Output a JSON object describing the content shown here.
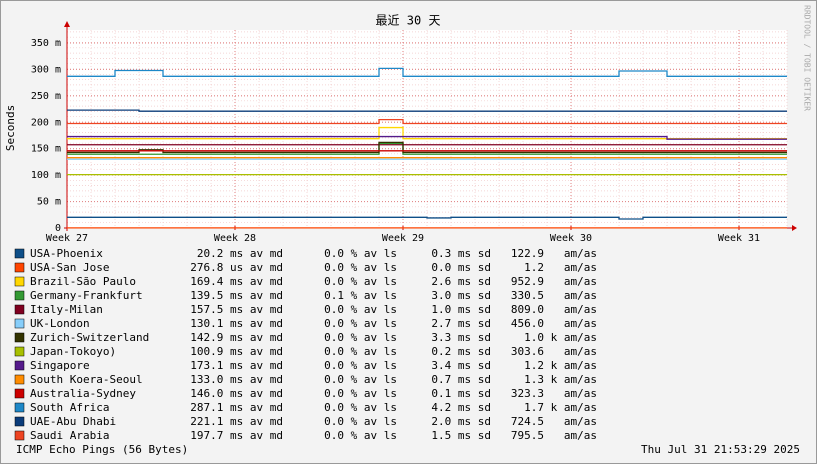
{
  "chart_data": {
    "type": "line",
    "title": "最近 30 天",
    "ylabel": "Seconds",
    "side_text": "RRDTOOL / TOBI OETIKER",
    "footer": "ICMP Echo Pings (56 Bytes)",
    "timestamp": "Thu Jul 31 21:53:29 2025",
    "categories": [
      "Week 27",
      null,
      null,
      null,
      null,
      null,
      null,
      "Week 28",
      null,
      null,
      null,
      null,
      null,
      null,
      "Week 29",
      null,
      null,
      null,
      null,
      null,
      null,
      "Week 30",
      null,
      null,
      null,
      null,
      null,
      null,
      "Week 31",
      null,
      null
    ],
    "ylim": [
      0,
      0.35
    ],
    "yticks": [
      0,
      {
        "value": 0.05,
        "label": "50 m"
      },
      {
        "value": 0.1,
        "label": "100 m"
      },
      {
        "value": 0.15,
        "label": "150 m"
      },
      {
        "value": 0.2,
        "label": "200 m"
      },
      {
        "value": 0.25,
        "label": "250 m"
      },
      {
        "value": 0.3,
        "label": "300 m"
      },
      {
        "value": 0.35,
        "label": "350 m"
      }
    ],
    "grid": true,
    "series": [
      {
        "name": "USA-Phoenix",
        "color": "#0e4f88",
        "values": [
          0.0202,
          0.0202,
          0.0202,
          0.0202,
          0.0202,
          0.0202,
          0.0202,
          0.0202,
          0.0202,
          0.0202,
          0.0202,
          0.0202,
          0.0202,
          0.0202,
          0.0202,
          0.019,
          0.0202,
          0.0202,
          0.0202,
          0.0202,
          0.0202,
          0.0202,
          0.0202,
          0.017,
          0.0202,
          0.0202,
          0.0202,
          0.0202,
          0.0202,
          0.0202,
          0.0202
        ],
        "stats": [
          "20.2 ms av md",
          "0.0 % av ls",
          "0.3 ms sd",
          "122.9   am/as"
        ]
      },
      {
        "name": "USA-San Jose",
        "color": "#ff4500",
        "values": [
          0.0003,
          0.0003,
          0.0003,
          0.0003,
          0.0003,
          0.0003,
          0.0003,
          0.0003,
          0.0003,
          0.0003,
          0.0003,
          0.0003,
          0.0003,
          0.0003,
          0.0003,
          0.0003,
          0.0003,
          0.0003,
          0.0003,
          0.0003,
          0.0003,
          0.0003,
          0.0003,
          0.0003,
          0.0003,
          0.0003,
          0.0003,
          0.0003,
          0.0003,
          0.0003,
          0.0003
        ],
        "stats": [
          "276.8 us av md",
          "0.0 % av ls",
          "0.0 ms sd",
          "1.2   am/as"
        ]
      },
      {
        "name": "Brazil-São Paulo",
        "color": "#ffd700",
        "values": [
          0.169,
          0.169,
          0.169,
          0.169,
          0.169,
          0.169,
          0.169,
          0.169,
          0.169,
          0.169,
          0.169,
          0.169,
          0.169,
          0.19,
          0.169,
          0.169,
          0.169,
          0.169,
          0.169,
          0.169,
          0.169,
          0.169,
          0.169,
          0.169,
          0.169,
          0.169,
          0.169,
          0.169,
          0.169,
          0.169,
          0.169
        ],
        "stats": [
          "169.4 ms av md",
          "0.0 % av ls",
          "2.6 ms sd",
          "952.9   am/as"
        ]
      },
      {
        "name": "Germany-Frankfurt",
        "color": "#339933",
        "values": [
          0.1395,
          0.1395,
          0.1395,
          0.1395,
          0.1395,
          0.1395,
          0.1395,
          0.1395,
          0.1395,
          0.1395,
          0.1395,
          0.1395,
          0.1395,
          0.16,
          0.1395,
          0.1395,
          0.1395,
          0.1395,
          0.1395,
          0.1395,
          0.1395,
          0.1395,
          0.1395,
          0.1395,
          0.1395,
          0.1395,
          0.1395,
          0.1395,
          0.1395,
          0.1395,
          0.1395
        ],
        "stats": [
          "139.5 ms av md",
          "0.1 % av ls",
          "3.0 ms sd",
          "330.5   am/as"
        ]
      },
      {
        "name": "Italy-Milan",
        "color": "#800020",
        "values": [
          0.1575,
          0.1575,
          0.1575,
          0.1575,
          0.1575,
          0.1575,
          0.1575,
          0.1575,
          0.1575,
          0.1575,
          0.1575,
          0.1575,
          0.1575,
          0.1575,
          0.1575,
          0.1575,
          0.1575,
          0.1575,
          0.1575,
          0.1575,
          0.1575,
          0.1575,
          0.1575,
          0.1575,
          0.1575,
          0.1575,
          0.1575,
          0.1575,
          0.1575,
          0.1575,
          0.1575
        ],
        "stats": [
          "157.5 ms av md",
          "0.0 % av ls",
          "1.0 ms sd",
          "809.0   am/as"
        ]
      },
      {
        "name": "UK-London",
        "color": "#87cefa",
        "values": [
          0.13,
          0.13,
          0.13,
          0.13,
          0.13,
          0.13,
          0.13,
          0.13,
          0.13,
          0.13,
          0.13,
          0.13,
          0.13,
          0.13,
          0.13,
          0.13,
          0.13,
          0.13,
          0.13,
          0.13,
          0.13,
          0.13,
          0.13,
          0.13,
          0.13,
          0.13,
          0.13,
          0.13,
          0.13,
          0.13,
          0.13
        ],
        "stats": [
          "130.1 ms av md",
          "0.0 % av ls",
          "2.7 ms sd",
          "456.0   am/as"
        ]
      },
      {
        "name": "Zurich-Switzerland",
        "color": "#333300",
        "values": [
          0.143,
          0.143,
          0.143,
          0.148,
          0.143,
          0.143,
          0.143,
          0.143,
          0.143,
          0.143,
          0.143,
          0.143,
          0.143,
          0.162,
          0.143,
          0.143,
          0.143,
          0.143,
          0.143,
          0.143,
          0.143,
          0.143,
          0.143,
          0.143,
          0.143,
          0.143,
          0.143,
          0.143,
          0.143,
          0.143,
          0.143
        ],
        "stats": [
          "142.9 ms av md",
          "0.0 % av ls",
          "3.3 ms sd",
          "1.0 k am/as"
        ]
      },
      {
        "name": "Japan-Tokoyo)",
        "color": "#a8c000",
        "values": [
          0.101,
          0.101,
          0.101,
          0.101,
          0.101,
          0.101,
          0.101,
          0.101,
          0.101,
          0.101,
          0.101,
          0.101,
          0.101,
          0.101,
          0.101,
          0.101,
          0.101,
          0.101,
          0.101,
          0.101,
          0.101,
          0.101,
          0.101,
          0.101,
          0.101,
          0.101,
          0.101,
          0.101,
          0.101,
          0.101,
          0.101
        ],
        "stats": [
          "100.9 ms av md",
          "0.0 % av ls",
          "0.2 ms sd",
          "303.6   am/as"
        ]
      },
      {
        "name": "Singapore",
        "color": "#551a8b",
        "values": [
          0.173,
          0.173,
          0.173,
          0.173,
          0.173,
          0.173,
          0.173,
          0.173,
          0.173,
          0.173,
          0.173,
          0.173,
          0.173,
          0.173,
          0.173,
          0.173,
          0.173,
          0.173,
          0.173,
          0.173,
          0.173,
          0.173,
          0.173,
          0.173,
          0.173,
          0.168,
          0.168,
          0.168,
          0.168,
          0.168,
          0.168
        ],
        "stats": [
          "173.1 ms av md",
          "0.0 % av ls",
          "3.4 ms sd",
          "1.2 k am/as"
        ]
      },
      {
        "name": "South Koera-Seoul",
        "color": "#ff8c00",
        "values": [
          0.133,
          0.133,
          0.133,
          0.133,
          0.133,
          0.133,
          0.133,
          0.133,
          0.133,
          0.133,
          0.133,
          0.133,
          0.133,
          0.133,
          0.133,
          0.133,
          0.133,
          0.133,
          0.133,
          0.133,
          0.133,
          0.133,
          0.133,
          0.133,
          0.133,
          0.133,
          0.133,
          0.133,
          0.133,
          0.133,
          0.133
        ],
        "stats": [
          "133.0 ms av md",
          "0.0 % av ls",
          "0.7 ms sd",
          "1.3 k am/as"
        ]
      },
      {
        "name": "Australia-Sydney",
        "color": "#cc0000",
        "values": [
          0.146,
          0.146,
          0.146,
          0.146,
          0.146,
          0.146,
          0.146,
          0.146,
          0.146,
          0.146,
          0.146,
          0.146,
          0.146,
          0.146,
          0.146,
          0.146,
          0.146,
          0.146,
          0.146,
          0.146,
          0.146,
          0.146,
          0.146,
          0.146,
          0.146,
          0.146,
          0.146,
          0.146,
          0.146,
          0.146,
          0.146
        ],
        "stats": [
          "146.0 ms av md",
          "0.0 % av ls",
          "0.1 ms sd",
          "323.3   am/as"
        ]
      },
      {
        "name": "South Africa",
        "color": "#1e88c8",
        "values": [
          0.287,
          0.287,
          0.298,
          0.298,
          0.287,
          0.287,
          0.287,
          0.287,
          0.287,
          0.287,
          0.287,
          0.287,
          0.287,
          0.302,
          0.287,
          0.287,
          0.287,
          0.287,
          0.287,
          0.287,
          0.287,
          0.287,
          0.287,
          0.297,
          0.297,
          0.287,
          0.287,
          0.287,
          0.287,
          0.287,
          0.287
        ],
        "stats": [
          "287.1 ms av md",
          "0.0 % av ls",
          "4.2 ms sd",
          "1.7 k am/as"
        ]
      },
      {
        "name": "UAE-Abu Dhabi",
        "color": "#0b3c7a",
        "values": [
          0.223,
          0.223,
          0.223,
          0.221,
          0.221,
          0.221,
          0.221,
          0.221,
          0.221,
          0.221,
          0.221,
          0.221,
          0.221,
          0.221,
          0.221,
          0.221,
          0.221,
          0.221,
          0.221,
          0.221,
          0.221,
          0.221,
          0.221,
          0.221,
          0.221,
          0.221,
          0.221,
          0.221,
          0.221,
          0.221,
          0.221
        ],
        "stats": [
          "221.1 ms av md",
          "0.0 % av ls",
          "2.0 ms sd",
          "724.5   am/as"
        ]
      },
      {
        "name": "Saudi Arabia",
        "color": "#ee4422",
        "values": [
          0.1977,
          0.1977,
          0.1977,
          0.1977,
          0.1977,
          0.1977,
          0.1977,
          0.1977,
          0.1977,
          0.1977,
          0.1977,
          0.1977,
          0.1977,
          0.205,
          0.1977,
          0.1977,
          0.1977,
          0.1977,
          0.1977,
          0.1977,
          0.1977,
          0.1977,
          0.1977,
          0.1977,
          0.1977,
          0.1977,
          0.1977,
          0.1977,
          0.1977,
          0.1977,
          0.1977
        ],
        "stats": [
          "197.7 ms av md",
          "0.0 % av ls",
          "1.5 ms sd",
          "795.5   am/as"
        ]
      }
    ]
  }
}
